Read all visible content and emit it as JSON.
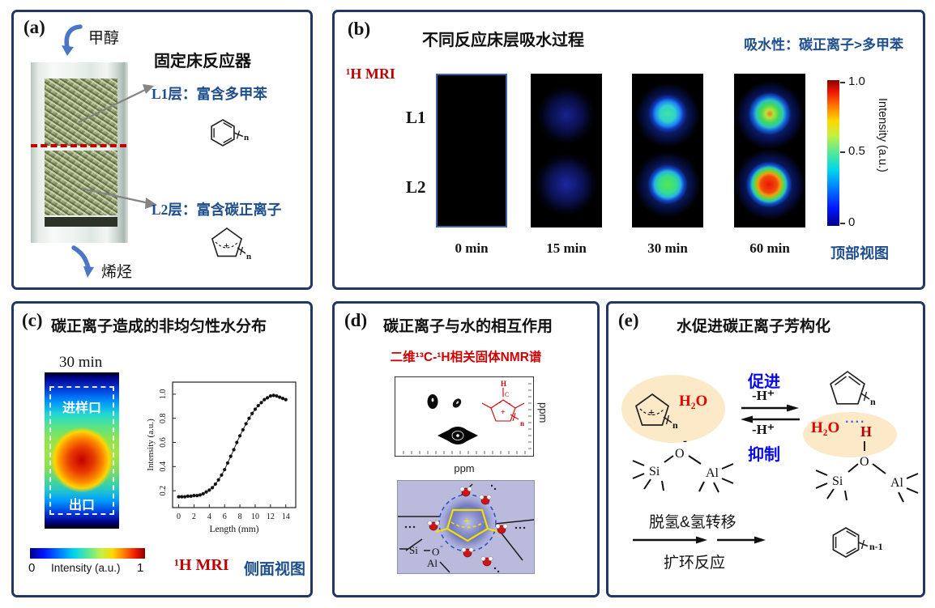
{
  "colors": {
    "panel_border": "#1f3864",
    "dark_blue_text": "#1f4e8c",
    "bright_blue_text": "#0a0ae6",
    "red_text": "#c00000",
    "bright_red_text": "#e60000",
    "cream_highlight": "#fbe9c8",
    "lavender_bg": "#b9badc",
    "arrow_blue": "#4a76c8"
  },
  "panel_a": {
    "label": "(a)",
    "title": "固定床反应器",
    "inlet": "甲醇",
    "outlet": "烯烃",
    "l1": "L1层：富含多甲苯",
    "l2": "L2层：富含碳正离子",
    "n1": "n",
    "n2": "n",
    "plus": "+"
  },
  "panel_b": {
    "label": "(b)",
    "title": "不同反应床层吸水过程",
    "conclusion": "吸水性：碳正离子>多甲苯",
    "method": "¹H MRI",
    "rows": [
      "L1",
      "L2"
    ],
    "times": [
      "0 min",
      "15 min",
      "30 min",
      "60 min"
    ],
    "colorbar": {
      "max": "1.0",
      "mid": "0.5",
      "min": "0",
      "label": "Intensity (a.u.)"
    },
    "view": "顶部视图"
  },
  "panel_c": {
    "label": "(c)",
    "title": "碳正离子造成的非均匀性水分布",
    "time": "30 min",
    "inlet": "进样口",
    "outlet": "出口",
    "colorbar": {
      "min": "0",
      "label": "Intensity (a.u.)",
      "max": "1"
    },
    "method": "¹H MRI",
    "view": "侧面视图"
  },
  "chart_data": {
    "type": "scatter",
    "title": "",
    "xlabel": "Length (mm)",
    "ylabel": "Intensity (a.u.)",
    "xlim": [
      -0.8,
      15.3
    ],
    "ylim": [
      0.06,
      1.1
    ],
    "xticks": [
      0,
      2,
      4,
      6,
      8,
      10,
      12,
      14
    ],
    "yticks": [
      0.2,
      0.4,
      0.6,
      0.8,
      1.0
    ],
    "x": [
      0,
      0.4,
      0.8,
      1.2,
      1.6,
      2,
      2.4,
      2.8,
      3.2,
      3.6,
      4,
      4.4,
      4.8,
      5.2,
      5.6,
      6,
      6.4,
      6.8,
      7.2,
      7.6,
      8,
      8.4,
      8.8,
      9.2,
      9.6,
      10,
      10.4,
      10.8,
      11.2,
      11.6,
      12,
      12.4,
      12.8,
      13.2,
      13.6,
      14
    ],
    "y": [
      0.15,
      0.15,
      0.15,
      0.155,
      0.155,
      0.16,
      0.16,
      0.165,
      0.175,
      0.19,
      0.205,
      0.225,
      0.255,
      0.29,
      0.33,
      0.375,
      0.43,
      0.485,
      0.54,
      0.6,
      0.655,
      0.705,
      0.755,
      0.8,
      0.84,
      0.875,
      0.905,
      0.93,
      0.955,
      0.97,
      0.985,
      0.99,
      0.985,
      0.975,
      0.965,
      0.955
    ]
  },
  "panel_d": {
    "label": "(d)",
    "title": "碳正离子与水的相互作用",
    "subtitle": "二维¹³C-¹H相关固体NMR谱",
    "xaxis": "ppm",
    "yaxis": "ppm",
    "struct": {
      "h": "H",
      "c": "C",
      "plus": "+",
      "n": "n"
    },
    "zeolite": {
      "si": "Si",
      "o": "O",
      "minus": "-",
      "al": "Al",
      "cation_plus": "+"
    }
  },
  "panel_e": {
    "label": "(e)",
    "title": "水促进碳正离子芳构化",
    "promote": "促进",
    "inhibit": "抑制",
    "arrow_top_label": "-H⁺",
    "arrow_bottom_label": "-H⁺",
    "left": {
      "h2o": "H₂O",
      "plus": "+",
      "n": "n",
      "si": "Si",
      "o": "O",
      "minus": "-",
      "al": "Al"
    },
    "right": {
      "h2o": "H₂O",
      "dots": "····",
      "h": "H",
      "n": "n",
      "si": "Si",
      "o": "O",
      "al": "Al"
    },
    "step_top": "脱氢&氢转移",
    "step_bottom": "扩环反应",
    "product_n": "n-1"
  }
}
